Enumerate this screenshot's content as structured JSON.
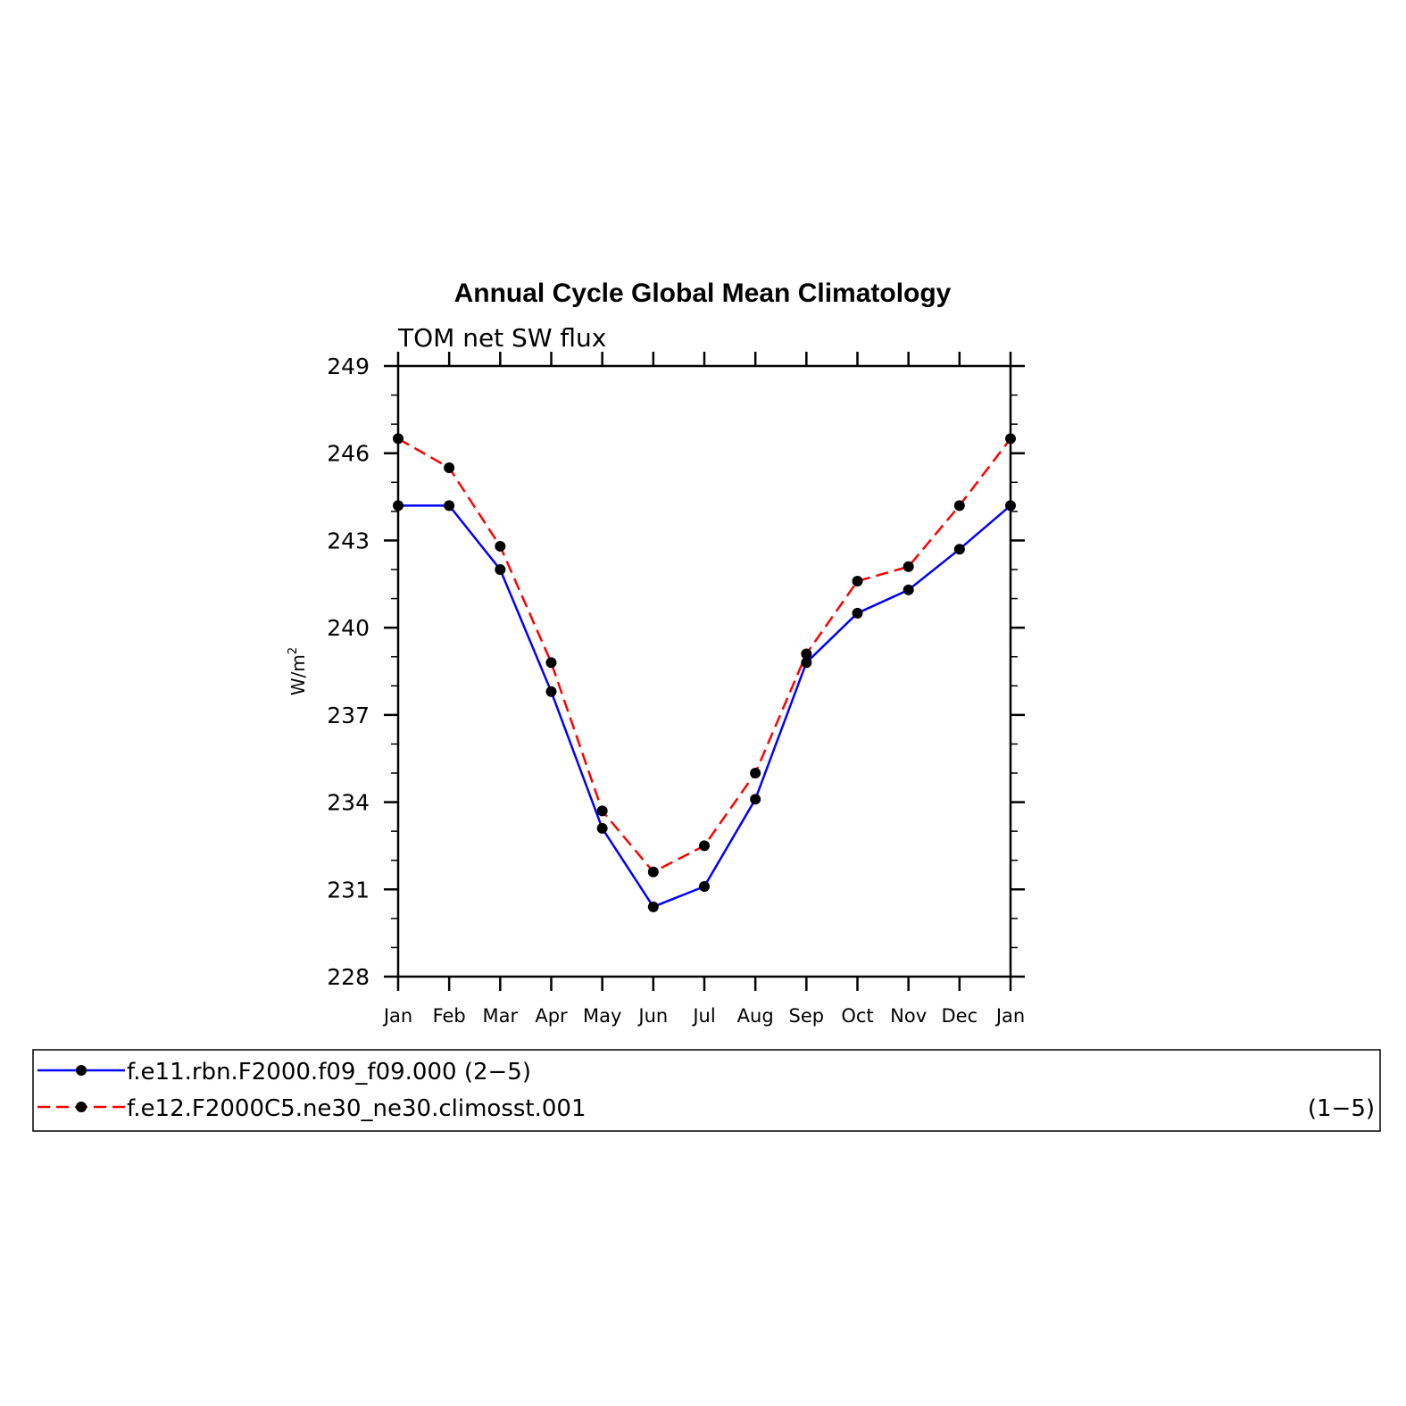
{
  "chart_data": {
    "type": "line",
    "title": "Annual Cycle Global Mean Climatology",
    "subtitle": "TOM net SW flux",
    "ylabel": "W/m",
    "ylabel_superscript": "2",
    "ylim": [
      228,
      249
    ],
    "yticks": [
      228,
      231,
      234,
      237,
      240,
      243,
      246,
      249
    ],
    "categories": [
      "Jan",
      "Feb",
      "Mar",
      "Apr",
      "May",
      "Jun",
      "Jul",
      "Aug",
      "Sep",
      "Oct",
      "Nov",
      "Dec",
      "Jan"
    ],
    "grid": false,
    "legend_position": "bottom",
    "series": [
      {
        "name": "f.e11.rbn.F2000.f09_f09.000",
        "suffix": "(2−5)",
        "color": "#0000ff",
        "dash": "solid",
        "values": [
          244.2,
          244.2,
          242.0,
          237.8,
          233.1,
          230.4,
          231.1,
          234.1,
          238.8,
          240.5,
          241.3,
          242.7,
          244.2
        ]
      },
      {
        "name": "f.e12.F2000C5.ne30_ne30.climosst.001",
        "suffix": "(1−5)",
        "color": "#ff0000",
        "dash": "dashed",
        "values": [
          246.5,
          245.5,
          242.8,
          238.8,
          233.7,
          231.6,
          232.5,
          235.0,
          239.1,
          241.6,
          242.1,
          244.2,
          246.5
        ]
      }
    ]
  }
}
